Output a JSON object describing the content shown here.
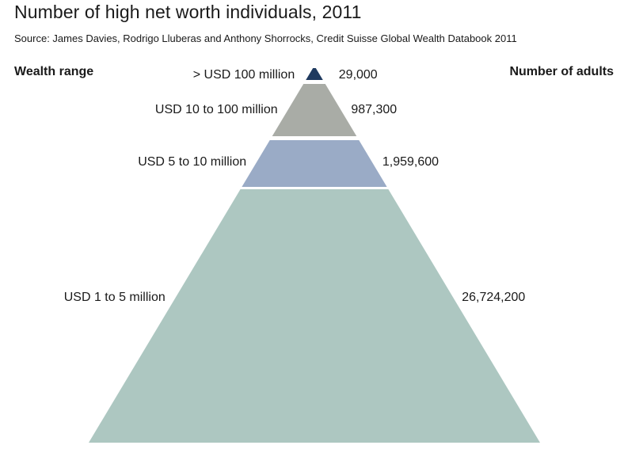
{
  "title": "Number of high net worth individuals, 2011",
  "subtitle": "Source: James Davies, Rodrigo Lluberas and Anthony Shorrocks, Credit Suisse Global Wealth Databook 2011",
  "column_headers": {
    "left": "Wealth range",
    "right": "Number of adults"
  },
  "colors": {
    "tier_top": "#1f3a5f",
    "tier_10_100": "#a9aca6",
    "tier_5_10": "#9aabc6",
    "tier_1_5": "#adc7c1"
  },
  "chart_data": {
    "type": "pyramid",
    "title": "Number of high net worth individuals, 2011",
    "subtitle": "Source: James Davies, Rodrigo Lluberas and Anthony Shorrocks, Credit Suisse Global Wealth Databook 2011",
    "xlabel": "Wealth range",
    "ylabel": "Number of adults",
    "categories": [
      "> USD 100 million",
      "USD 10 to 100 million",
      "USD 5 to 10 million",
      "USD 1 to 5 million"
    ],
    "values": [
      29000,
      987300,
      1959600,
      26724200
    ],
    "value_labels": [
      "29,000",
      "987,300",
      "1,959,600",
      "26,724,200"
    ]
  }
}
